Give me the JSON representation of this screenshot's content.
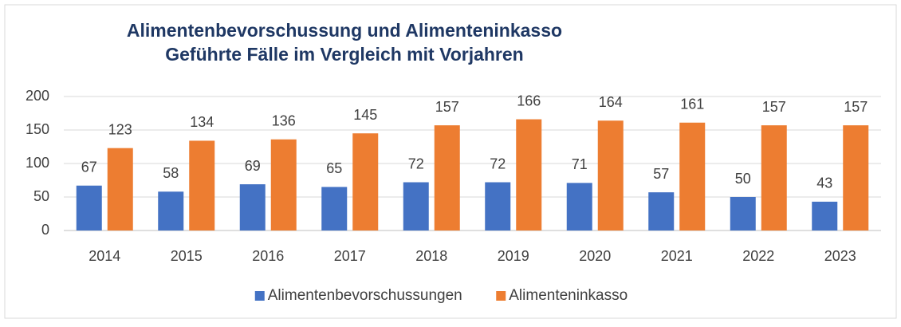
{
  "chart_data": {
    "type": "bar",
    "title": "Alimentenbevorschussung und Alimenteninkasso",
    "subtitle": "Geführte Fälle im Vergleich mit Vorjahren",
    "categories": [
      "2014",
      "2015",
      "2016",
      "2017",
      "2018",
      "2019",
      "2020",
      "2021",
      "2022",
      "2023"
    ],
    "series": [
      {
        "name": "Alimentenbevorschussungen",
        "color": "#4472c4",
        "values": [
          67,
          58,
          69,
          65,
          72,
          72,
          71,
          57,
          50,
          43
        ]
      },
      {
        "name": "Alimenteninkasso",
        "color": "#ed7d31",
        "values": [
          123,
          134,
          136,
          145,
          157,
          166,
          164,
          161,
          157,
          157
        ]
      }
    ],
    "ylim": [
      0,
      200
    ],
    "yticks": [
      0,
      50,
      100,
      150,
      200
    ],
    "grid": true,
    "legend": "bottom"
  }
}
